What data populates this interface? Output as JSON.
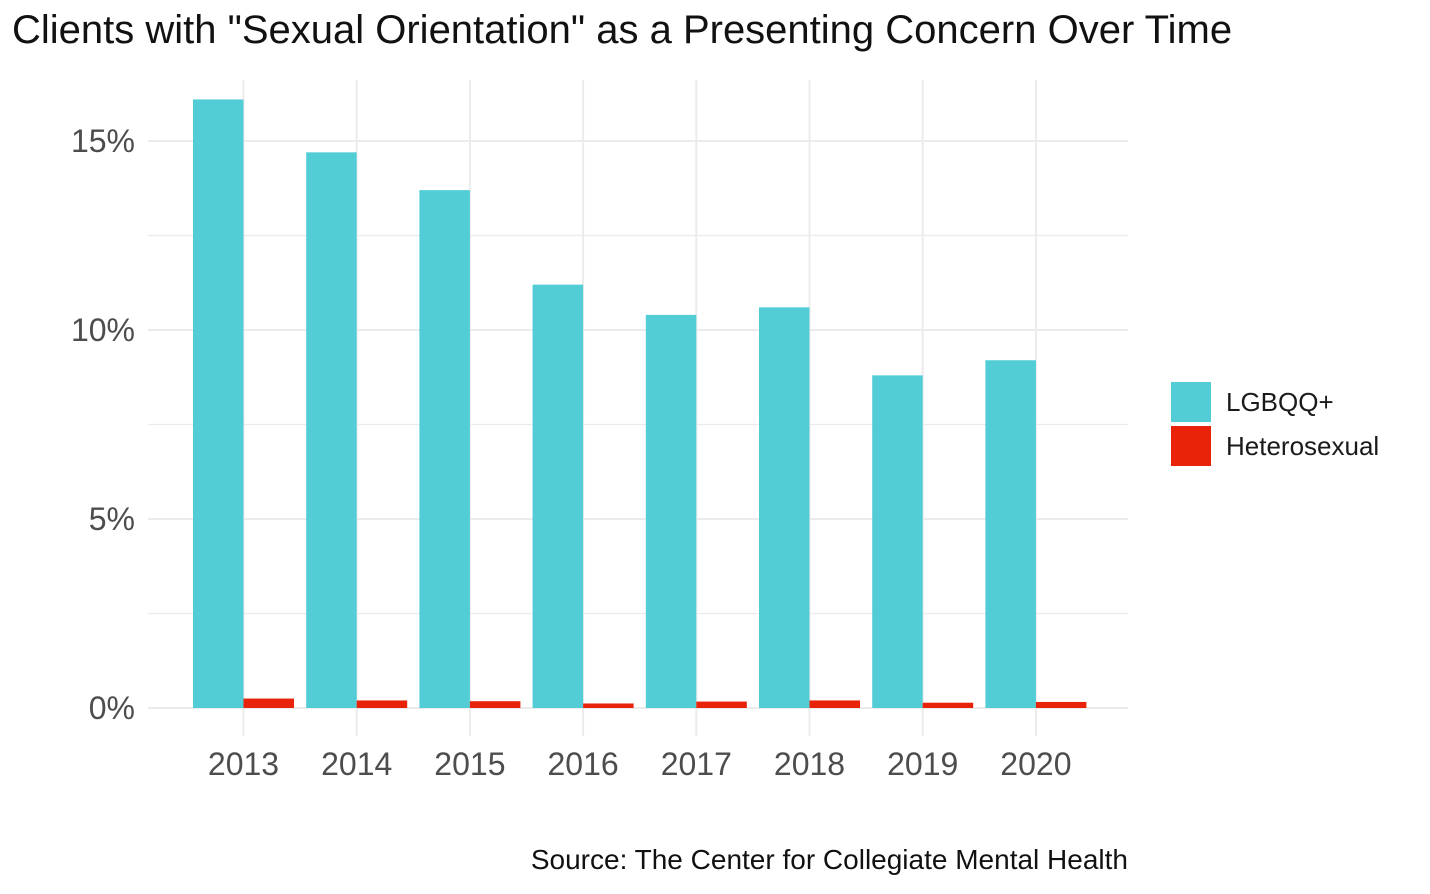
{
  "title": "Clients with \"Sexual Orientation\" as a Presenting Concern Over Time",
  "source": "Source: The Center for Collegiate Mental Health",
  "colors": {
    "LGBQQ+": "#52CDD6",
    "Heterosexual": "#E8230A",
    "grid": "#EBEBEB",
    "tick_text": "#4D4D4D"
  },
  "chart_data": {
    "type": "bar",
    "title": "Clients with \"Sexual Orientation\" as a Presenting Concern Over Time",
    "xlabel": "",
    "ylabel": "",
    "categories": [
      "2013",
      "2014",
      "2015",
      "2016",
      "2017",
      "2018",
      "2019",
      "2020"
    ],
    "series": [
      {
        "name": "LGBQQ+",
        "values": [
          16.1,
          14.7,
          13.7,
          11.2,
          10.4,
          10.6,
          8.8,
          9.2
        ]
      },
      {
        "name": "Heterosexual",
        "values": [
          0.25,
          0.2,
          0.18,
          0.12,
          0.17,
          0.2,
          0.14,
          0.16
        ]
      }
    ],
    "ylim": [
      0,
      16.5
    ],
    "y_ticks": [
      0,
      5,
      10,
      15
    ],
    "y_tick_labels": [
      "0%",
      "5%",
      "10%",
      "15%"
    ],
    "grid": true,
    "legend_position": "right"
  }
}
